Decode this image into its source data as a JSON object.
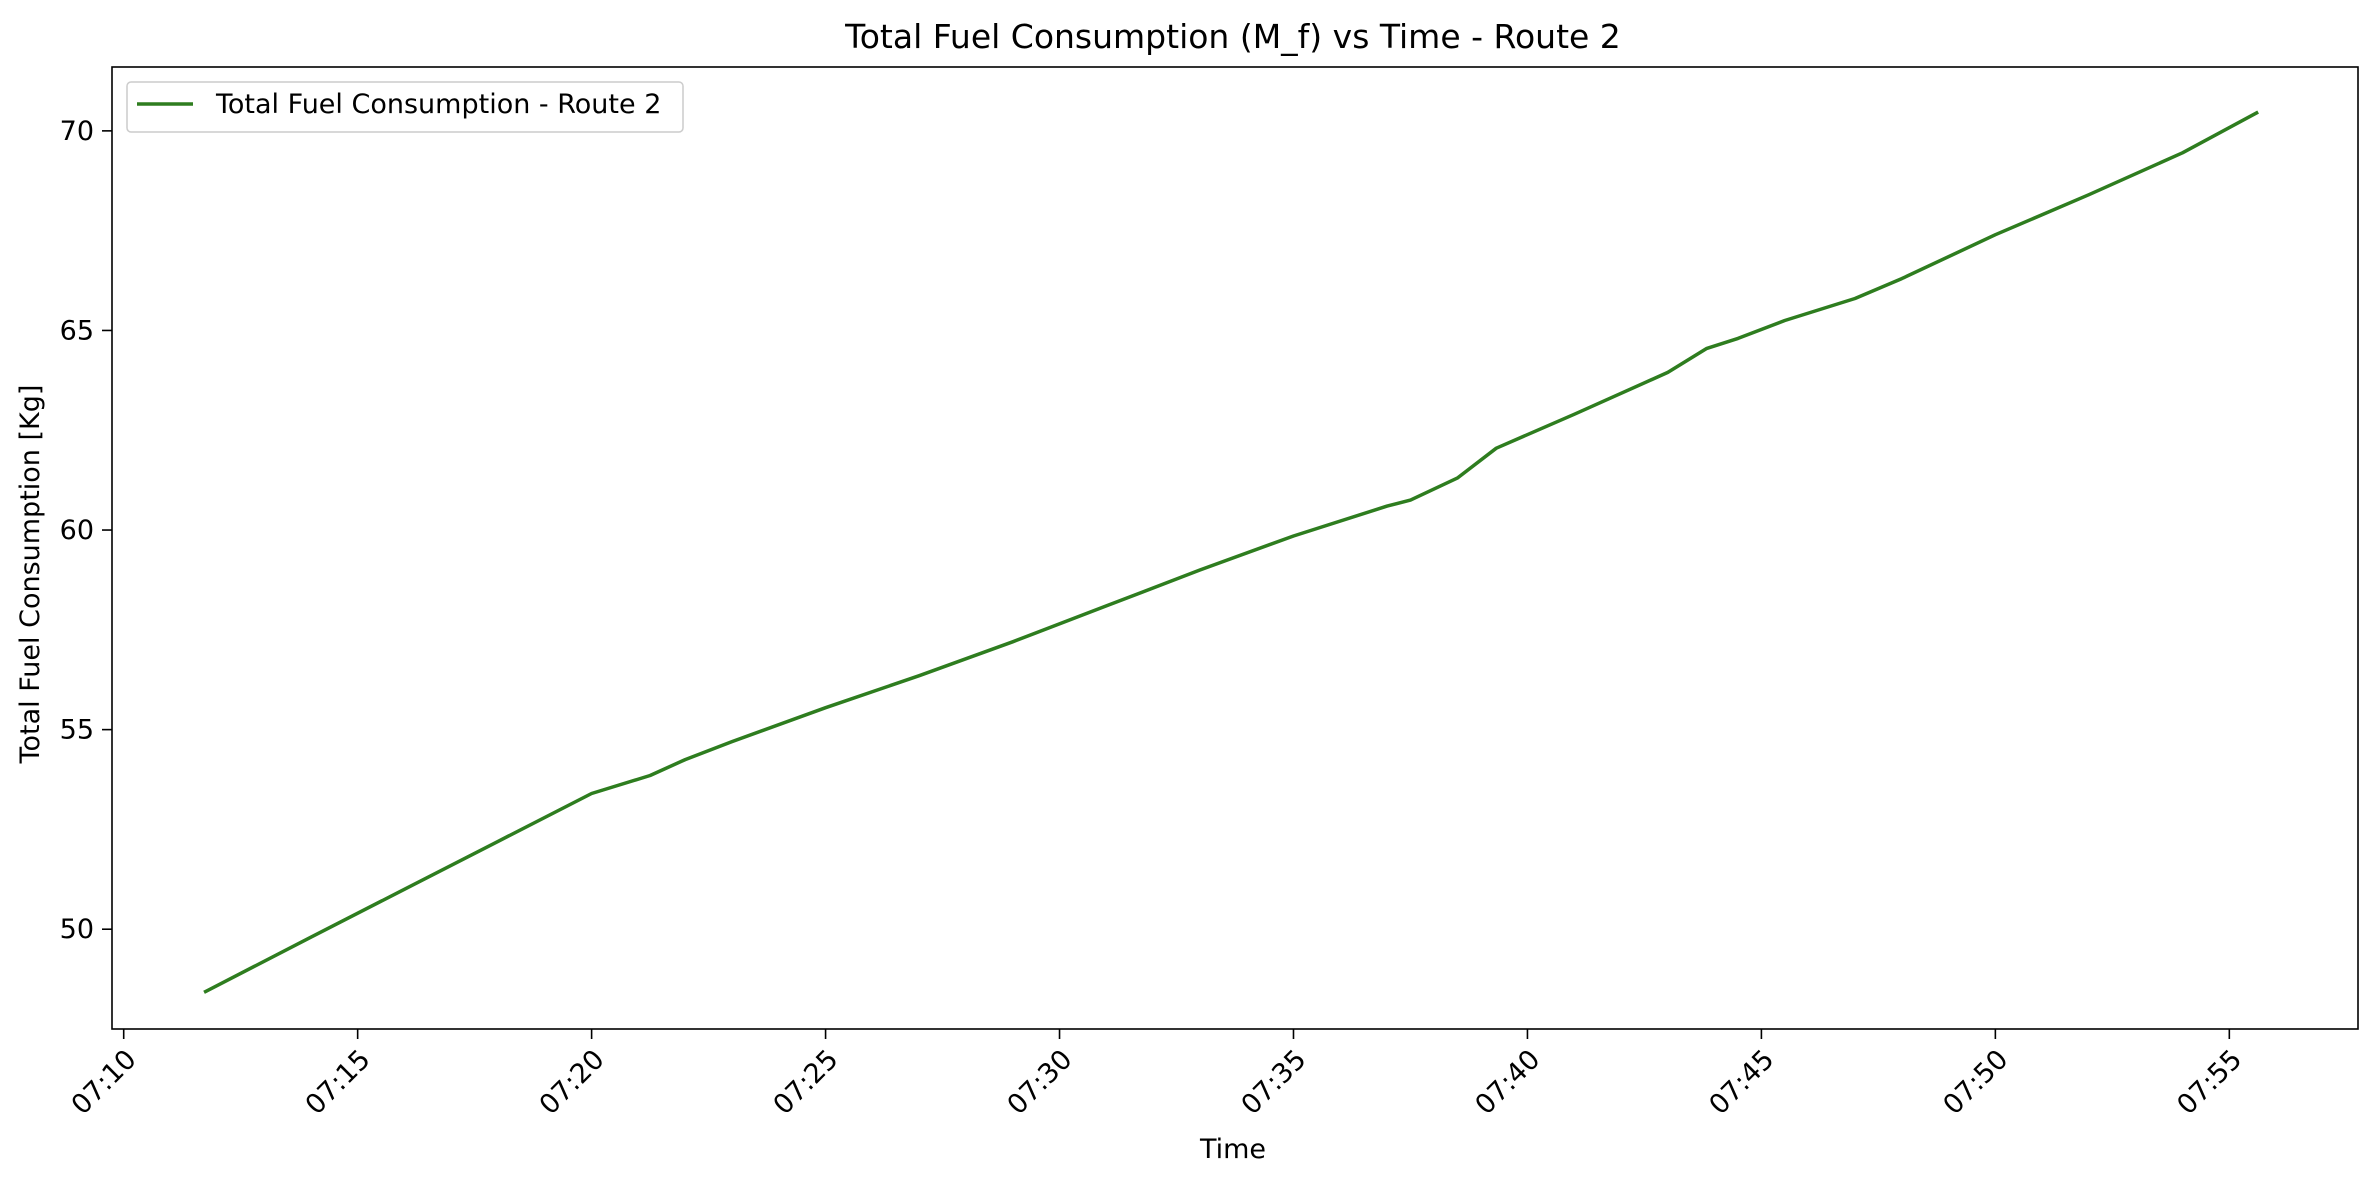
{
  "chart_data": {
    "type": "line",
    "title": "Total Fuel Consumption (M_f) vs Time - Route 2",
    "xlabel": "Time",
    "ylabel": "Total Fuel Consumption [Kg]",
    "x_ticks": [
      "07:10",
      "07:15",
      "07:20",
      "07:25",
      "07:30",
      "07:35",
      "07:40",
      "07:45",
      "07:50",
      "07:55"
    ],
    "y_ticks": [
      50,
      55,
      60,
      65,
      70
    ],
    "xlim": [
      "07:09:45",
      "07:57:45"
    ],
    "ylim": [
      47.5,
      71.6
    ],
    "grid": false,
    "legend": {
      "placement": "top-left"
    },
    "series": [
      {
        "name": "Total Fuel Consumption - Route 2",
        "color": "#2e7d1f",
        "points": [
          [
            "07:11:45",
            48.44
          ],
          [
            "07:14:00",
            49.8
          ],
          [
            "07:16:00",
            51.0
          ],
          [
            "07:18:00",
            52.2
          ],
          [
            "07:20:00",
            53.4
          ],
          [
            "07:21:15",
            53.85
          ],
          [
            "07:22:00",
            54.25
          ],
          [
            "07:23:00",
            54.7
          ],
          [
            "07:25:00",
            55.55
          ],
          [
            "07:27:00",
            56.35
          ],
          [
            "07:29:00",
            57.2
          ],
          [
            "07:31:00",
            58.1
          ],
          [
            "07:33:00",
            59.0
          ],
          [
            "07:35:00",
            59.85
          ],
          [
            "07:37:00",
            60.6
          ],
          [
            "07:37:30",
            60.75
          ],
          [
            "07:38:30",
            61.3
          ],
          [
            "07:39:20",
            62.05
          ],
          [
            "07:41:00",
            62.9
          ],
          [
            "07:43:00",
            63.95
          ],
          [
            "07:43:50",
            64.55
          ],
          [
            "07:44:30",
            64.8
          ],
          [
            "07:45:30",
            65.25
          ],
          [
            "07:47:00",
            65.8
          ],
          [
            "07:48:00",
            66.3
          ],
          [
            "07:50:00",
            67.4
          ],
          [
            "07:52:00",
            68.4
          ],
          [
            "07:54:00",
            69.45
          ],
          [
            "07:55:35",
            70.45
          ]
        ]
      }
    ]
  }
}
